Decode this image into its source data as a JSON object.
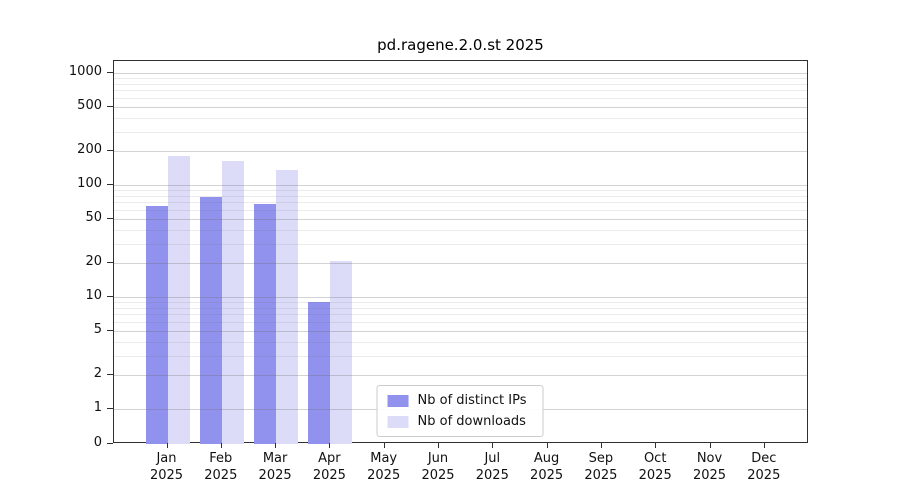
{
  "legend": {
    "items": [
      {
        "label": "Nb of distinct IPs",
        "color": "#9191ee"
      },
      {
        "label": "Nb of downloads",
        "color": "#dcdcf9"
      }
    ]
  },
  "chart_data": {
    "type": "bar",
    "title": "pd.ragene.2.0.st 2025",
    "scale": "symlog",
    "grid": true,
    "legend_position": "lower center",
    "categories": [
      "Jan",
      "Feb",
      "Mar",
      "Apr",
      "May",
      "Jun",
      "Jul",
      "Aug",
      "Sep",
      "Oct",
      "Nov",
      "Dec"
    ],
    "category_year": "2025",
    "series": [
      {
        "name": "Nb of distinct IPs",
        "color": "#9191ee",
        "values": [
          65,
          78,
          67,
          9,
          0,
          0,
          0,
          0,
          0,
          0,
          0,
          0
        ]
      },
      {
        "name": "Nb of downloads",
        "color": "#dcdcf9",
        "values": [
          180,
          165,
          135,
          21,
          0,
          0,
          0,
          0,
          0,
          0,
          0,
          0
        ]
      }
    ],
    "yticks": [
      0,
      1,
      2,
      5,
      10,
      20,
      50,
      100,
      200,
      500,
      1000
    ],
    "ylim": [
      0,
      1000
    ],
    "xlabel": "",
    "ylabel": ""
  }
}
